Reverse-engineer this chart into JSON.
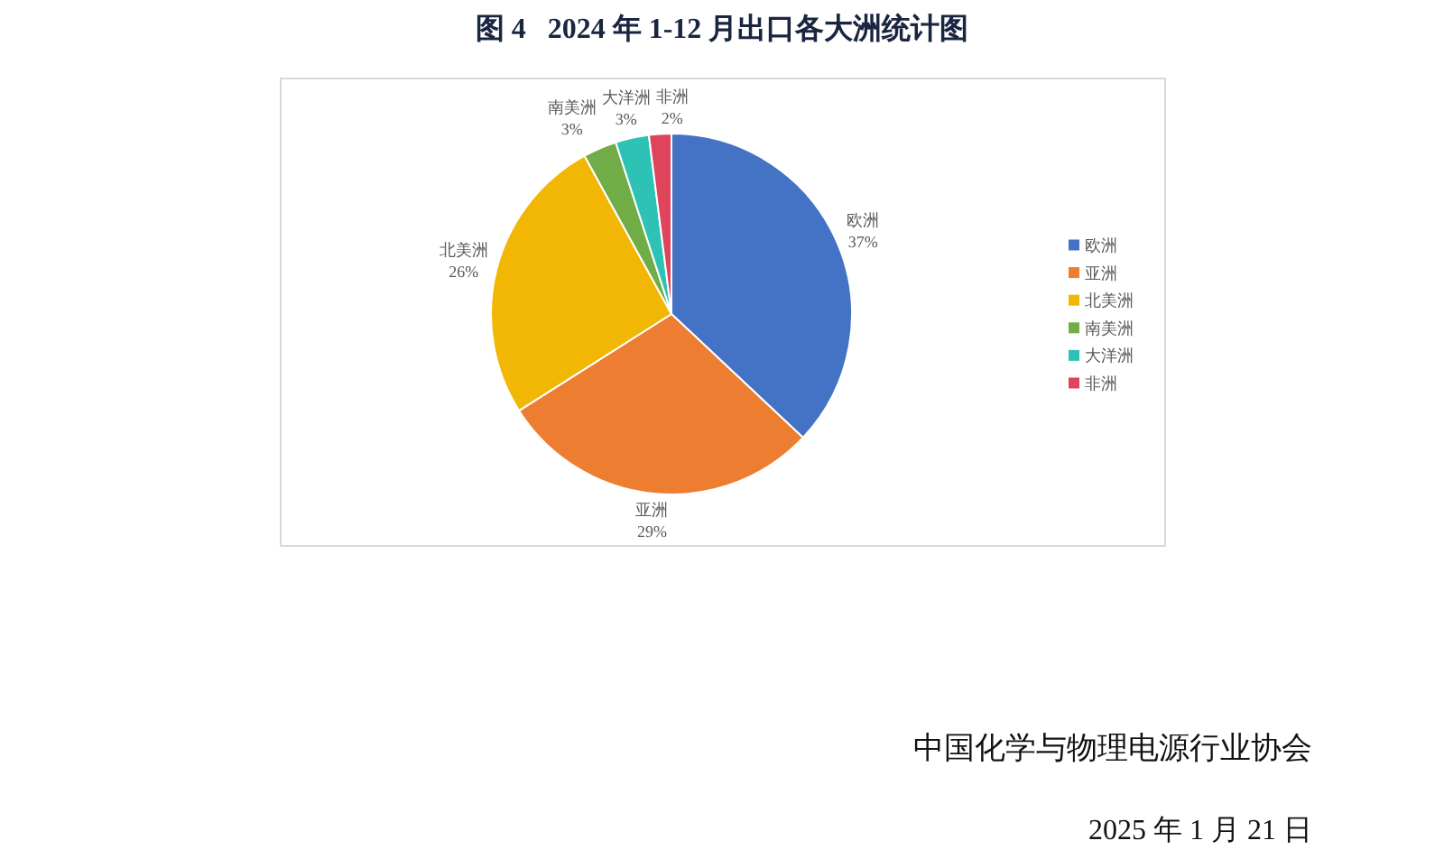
{
  "chart_data": {
    "type": "pie",
    "title": "图 4   2024 年 1-12 月出口各大洲统计图",
    "categories": [
      "欧洲",
      "亚洲",
      "北美洲",
      "南美洲",
      "大洋洲",
      "非洲"
    ],
    "values": [
      37,
      29,
      26,
      3,
      3,
      2
    ],
    "colors": [
      "#4472c4",
      "#ed7d31",
      "#f2b705",
      "#70ad47",
      "#2ec2b4",
      "#e0435c"
    ],
    "value_labels": [
      "37%",
      "29%",
      "26%",
      "3%",
      "3%",
      "2%"
    ],
    "legend": "right",
    "annotations": [
      "中国化学与物理电源行业协会",
      "2025 年 1 月 21 日"
    ]
  }
}
